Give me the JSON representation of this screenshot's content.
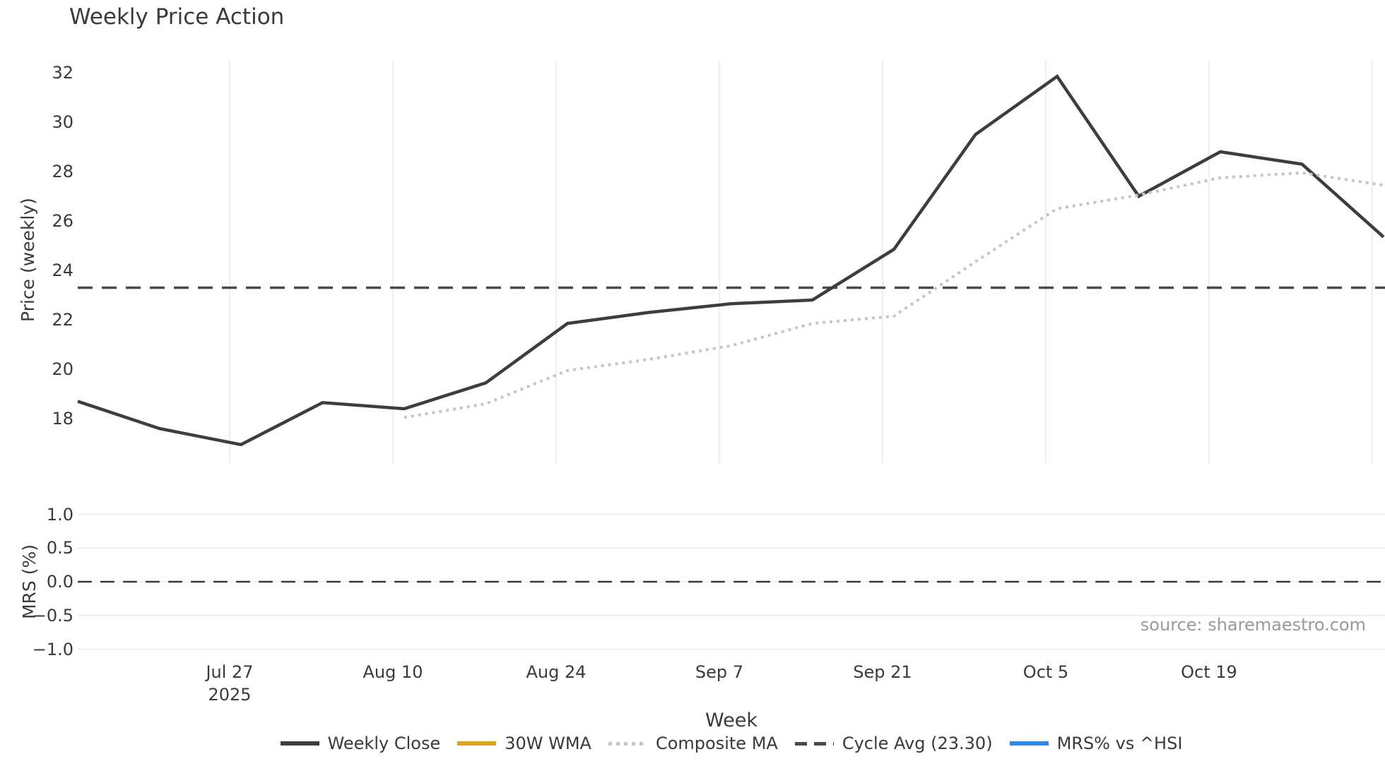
{
  "title": "Weekly Price Action",
  "source_note": "source: sharemaestro.com",
  "colors": {
    "background": "#ffffff",
    "grid": "#ebebf2",
    "dark_line": "#3d3d3d",
    "dotted_ma": "#c5c5c5",
    "dashed_avg": "#4a4a4a",
    "zero_line": "#3a3a3a",
    "wma_orange": "#d9a521",
    "mrs_blue": "#2e86e8",
    "tick_text": "#3a3a3a",
    "source_text": "#9a9a9a"
  },
  "chart_data": {
    "type": "line",
    "title": "Weekly Price Action",
    "xlabel": "Week",
    "x_tick_labels": [
      {
        "label": "Jul 27",
        "sub": "2025"
      },
      {
        "label": "Aug 10",
        "sub": ""
      },
      {
        "label": "Aug 24",
        "sub": ""
      },
      {
        "label": "Sep 7",
        "sub": ""
      },
      {
        "label": "Sep 21",
        "sub": ""
      },
      {
        "label": "Oct 5",
        "sub": ""
      },
      {
        "label": "Oct 19",
        "sub": ""
      }
    ],
    "panels": [
      {
        "name": "price",
        "ylabel": "Price (weekly)",
        "ylim": [
          16.4,
          32.5
        ],
        "grid": "vertical",
        "cycle_avg": 23.3,
        "yticks": [
          {
            "v": 18,
            "label": "18"
          },
          {
            "v": 20,
            "label": "20"
          },
          {
            "v": 22,
            "label": "22"
          },
          {
            "v": 24,
            "label": "24"
          },
          {
            "v": 26,
            "label": "26"
          },
          {
            "v": 28,
            "label": "28"
          },
          {
            "v": 30,
            "label": "30"
          },
          {
            "v": 32,
            "label": "32"
          }
        ],
        "series": [
          {
            "name": "Weekly Close",
            "style": "solid-dark",
            "start_week": 0,
            "values": [
              18.7,
              17.6,
              16.95,
              18.65,
              18.4,
              19.45,
              21.85,
              22.3,
              22.65,
              22.8,
              24.85,
              29.5,
              31.85,
              27.0,
              28.8,
              28.3,
              25.35
            ]
          },
          {
            "name": "30W WMA",
            "style": "solid-orange",
            "start_week": 0,
            "values": []
          },
          {
            "name": "Composite MA",
            "style": "dotted-gray",
            "start_week": 4,
            "values": [
              18.05,
              18.6,
              19.95,
              20.4,
              20.95,
              21.85,
              22.15,
              24.35,
              26.5,
              27.05,
              27.75,
              27.95,
              27.45
            ]
          }
        ]
      },
      {
        "name": "mrs",
        "ylabel": "MRS (%)",
        "ylim": [
          -1.15,
          1.15
        ],
        "grid": "horizontal",
        "zero_line": 0.0,
        "yticks": [
          {
            "v": 1.0,
            "label": "1.0"
          },
          {
            "v": 0.5,
            "label": "0.5"
          },
          {
            "v": 0.0,
            "label": "0.0"
          },
          {
            "v": -0.5,
            "label": "−0.5"
          },
          {
            "v": -1.0,
            "label": "−1.0"
          }
        ],
        "series": [
          {
            "name": "MRS% vs ^HSI",
            "style": "solid-blue",
            "start_week": 0,
            "values": []
          }
        ]
      }
    ],
    "legend": [
      {
        "label": "Weekly Close",
        "style": "solid-dark"
      },
      {
        "label": "30W WMA",
        "style": "solid-orange"
      },
      {
        "label": "Composite MA",
        "style": "dotted-gray"
      },
      {
        "label": "Cycle Avg (23.30)",
        "style": "dashed-dark"
      },
      {
        "label": "MRS% vs ^HSI",
        "style": "solid-blue"
      }
    ]
  }
}
